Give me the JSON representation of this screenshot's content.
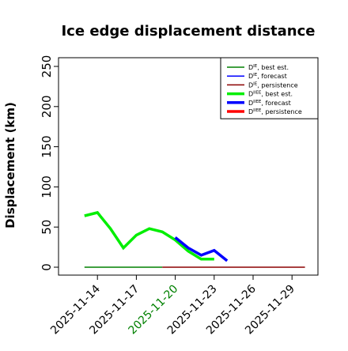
{
  "chart_data": {
    "type": "line",
    "title": "Ice edge displacement distance",
    "ylabel": "Displacement (km)",
    "xlabel": "",
    "ylim": [
      0,
      250
    ],
    "y_ticks": [
      0,
      50,
      100,
      150,
      200,
      250
    ],
    "xlim": [
      "2025-11-11",
      "2025-12-01"
    ],
    "x_ticks": [
      "2025-11-14",
      "2025-11-17",
      "2025-11-20",
      "2025-11-23",
      "2025-11-26",
      "2025-11-29"
    ],
    "highlighted_tick": "2025-11-20",
    "grid": false,
    "legend_position": "top-right",
    "series": [
      {
        "name": "D^IE, best est.",
        "color": "#008000",
        "line_width": "thin",
        "x": [
          "2025-11-13",
          "2025-11-19"
        ],
        "y": [
          0,
          0
        ]
      },
      {
        "name": "D^IE, forecast",
        "color": "#0000ff",
        "line_width": "thin",
        "x": [],
        "y": []
      },
      {
        "name": "D^IE, persistence",
        "color": "#8b0000",
        "line_width": "thin",
        "x": [
          "2025-11-19",
          "2025-11-30"
        ],
        "y": [
          0,
          0
        ]
      },
      {
        "name": "D^IIEE, best est.",
        "color": "#00ee00",
        "line_width": "thick",
        "x": [
          "2025-11-13",
          "2025-11-14",
          "2025-11-15",
          "2025-11-16",
          "2025-11-17",
          "2025-11-18",
          "2025-11-19",
          "2025-11-20",
          "2025-11-21",
          "2025-11-22",
          "2025-11-23"
        ],
        "y": [
          64,
          68,
          48,
          24,
          40,
          48,
          44,
          34,
          20,
          10,
          10
        ]
      },
      {
        "name": "D^IIEE, forecast",
        "color": "#0000ff",
        "line_width": "thick",
        "x": [
          "2025-11-20",
          "2025-11-21",
          "2025-11-22",
          "2025-11-23",
          "2025-11-24"
        ],
        "y": [
          37,
          24,
          15,
          21,
          8
        ]
      },
      {
        "name": "D^IIEE, persistence",
        "color": "#ff0000",
        "line_width": "thick",
        "x": [],
        "y": []
      }
    ]
  }
}
